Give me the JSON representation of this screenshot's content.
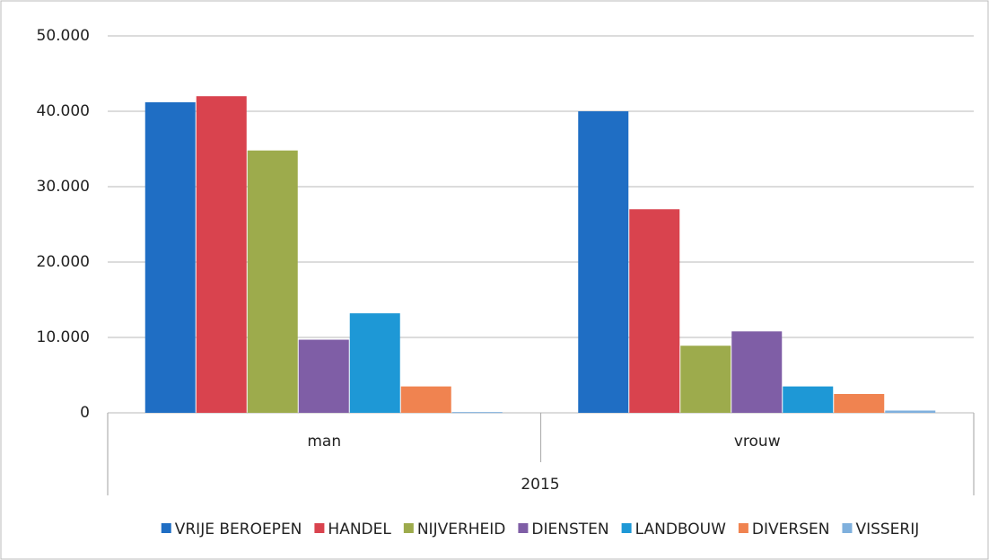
{
  "chart_data": {
    "type": "bar",
    "categories": [
      "man",
      "vrouw"
    ],
    "group_label": "2015",
    "series": [
      {
        "name": "VRIJE BEROEPEN",
        "color": "#1f6ec4",
        "values": [
          41200,
          40000
        ]
      },
      {
        "name": "HANDEL",
        "color": "#d9434e",
        "values": [
          42000,
          27000
        ]
      },
      {
        "name": "NIJVERHEID",
        "color": "#9dab4c",
        "values": [
          34800,
          8900
        ]
      },
      {
        "name": "DIENSTEN",
        "color": "#7f5ea6",
        "values": [
          9700,
          10800
        ]
      },
      {
        "name": "LANDBOUW",
        "color": "#1e98d6",
        "values": [
          13200,
          3500
        ]
      },
      {
        "name": "DIVERSEN",
        "color": "#f08350",
        "values": [
          3500,
          2500
        ]
      },
      {
        "name": "VISSERIJ",
        "color": "#7fb0dd",
        "values": [
          100,
          300
        ]
      }
    ],
    "ylim": [
      0,
      50000
    ],
    "yticks": [
      0,
      {
        "value": 10000,
        "label": "10.000"
      },
      {
        "value": 20000,
        "label": "20.000"
      },
      {
        "value": 30000,
        "label": "30.000"
      },
      {
        "value": 40000,
        "label": "40.000"
      },
      {
        "value": 50000,
        "label": "50.000"
      }
    ],
    "grid": true,
    "legend": "bottom"
  }
}
